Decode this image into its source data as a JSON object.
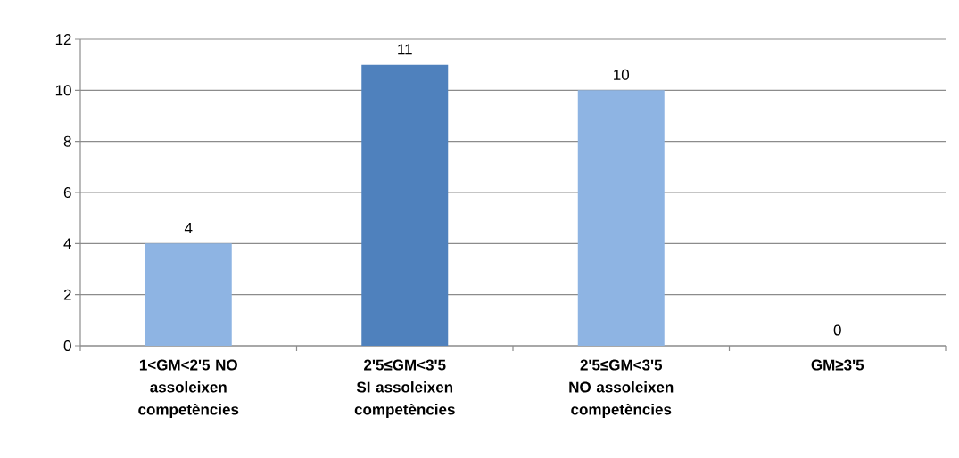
{
  "chart_data": {
    "type": "bar",
    "categories": [
      "1<GM<2'5 NO assoleixen competències",
      "2'5≤GM<3'5 SI assoleixen competències",
      "2'5≤GM<3'5 NO assoleixen competències",
      "GM≥3'5"
    ],
    "values": [
      4,
      11,
      10,
      0
    ],
    "colors": [
      "#8eb4e3",
      "#4f81bd",
      "#8eb4e3",
      "#8eb4e3"
    ],
    "ylim": [
      0,
      12
    ],
    "yticks": [
      0,
      2,
      4,
      6,
      8,
      10,
      12
    ],
    "grid": "y",
    "data_labels": true
  }
}
